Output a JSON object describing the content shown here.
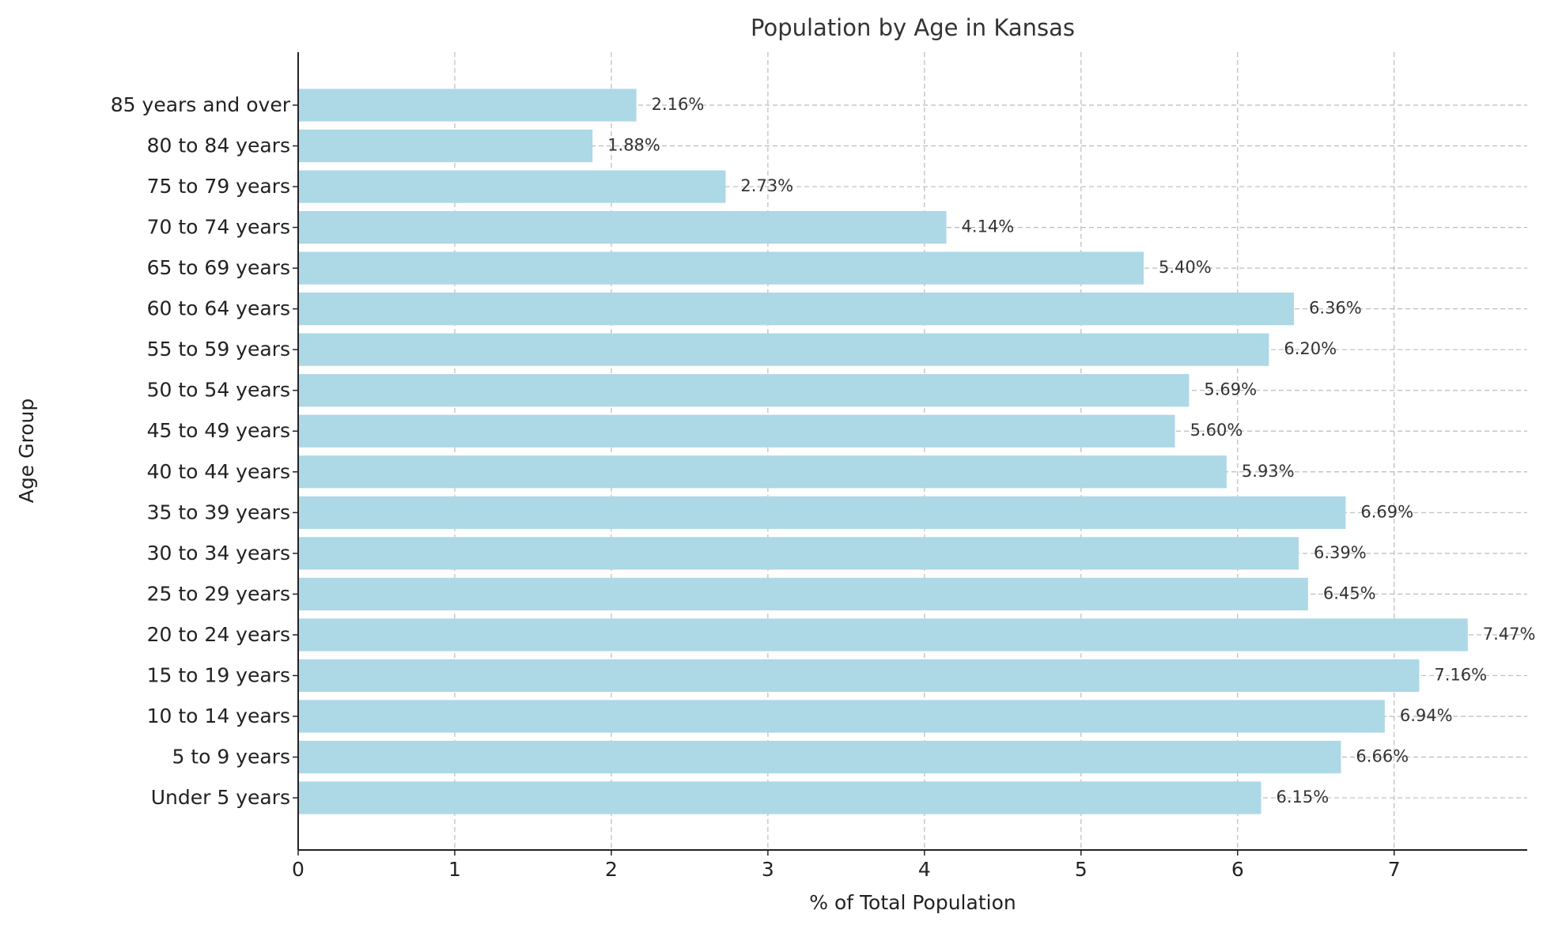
{
  "chart_data": {
    "type": "hbar",
    "title": "Population by Age in Kansas",
    "x_label": "% of Total Population",
    "y_label": "Age Group",
    "categories": [
      "Under 5 years",
      "5 to 9 years",
      "10 to 14 years",
      "15 to 19 years",
      "20 to 24 years",
      "25 to 29 years",
      "30 to 34 years",
      "35 to 39 years",
      "40 to 44 years",
      "45 to 49 years",
      "50 to 54 years",
      "55 to 59 years",
      "60 to 64 years",
      "65 to 69 years",
      "70 to 74 years",
      "75 to 79 years",
      "80 to 84 years",
      "85 years and over"
    ],
    "values": [
      6.15,
      6.66,
      6.94,
      7.16,
      7.47,
      6.45,
      6.39,
      6.69,
      5.93,
      5.6,
      5.69,
      6.2,
      6.36,
      5.4,
      4.14,
      2.73,
      1.88,
      2.16
    ],
    "value_labels": [
      "6.15%",
      "6.66%",
      "6.94%",
      "7.16%",
      "7.47%",
      "6.45%",
      "6.39%",
      "6.69%",
      "5.93%",
      "5.60%",
      "5.69%",
      "6.20%",
      "6.36%",
      "5.40%",
      "4.14%",
      "2.73%",
      "1.88%",
      "2.16%"
    ],
    "color": "#add8e6",
    "xlim": [
      0,
      7.85
    ],
    "xticks": [
      0,
      1,
      2,
      3,
      4,
      5,
      6,
      7
    ],
    "grid": true
  }
}
